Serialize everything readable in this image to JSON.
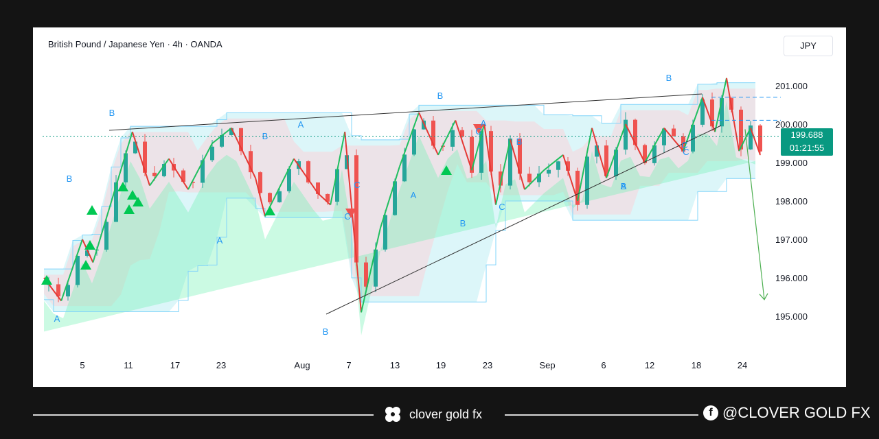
{
  "header": {
    "symbol_line": "British Pound / Japanese Yen · 4h · OANDA",
    "currency": "JPY"
  },
  "price_tag": {
    "price": "199.688",
    "countdown": "01:21:55"
  },
  "footer": {
    "brand": "clover gold fx",
    "social": "@CLOVER GOLD FX"
  },
  "colors": {
    "up": "#26a69a",
    "down": "#ef5350",
    "wave_label": "#2196f3",
    "price_tag": "#089981",
    "zigzag_up": "#1fbf5f",
    "zigzag_down": "#e53935",
    "projection": "#4caf50"
  },
  "chart_data": {
    "type": "candlestick",
    "title": "British Pound / Japanese Yen · 4h · OANDA",
    "currency": "JPY",
    "ylim": [
      194.0,
      202.5
    ],
    "y_ticks": [
      195.0,
      196.0,
      197.0,
      198.0,
      199.0,
      200.0,
      201.0
    ],
    "x_ticks": [
      "5",
      "11",
      "17",
      "23",
      "Aug",
      "7",
      "13",
      "19",
      "23",
      "Sep",
      "6",
      "12",
      "18",
      "24"
    ],
    "last_price": 199.688,
    "swing_points": [
      {
        "t": 0.0,
        "p": 196.0
      },
      {
        "t": 1.8,
        "p": 195.4
      },
      {
        "t": 4.0,
        "p": 197.0
      },
      {
        "t": 5.1,
        "p": 196.4
      },
      {
        "t": 9.2,
        "p": 199.8
      },
      {
        "t": 11.0,
        "p": 198.4
      },
      {
        "t": 13.0,
        "p": 199.1
      },
      {
        "t": 15.0,
        "p": 198.3
      },
      {
        "t": 17.5,
        "p": 199.5
      },
      {
        "t": 19.5,
        "p": 199.9
      },
      {
        "t": 22.0,
        "p": 198.6
      },
      {
        "t": 23.0,
        "p": 197.6
      },
      {
        "t": 26.0,
        "p": 199.1
      },
      {
        "t": 28.5,
        "p": 198.2
      },
      {
        "t": 29.8,
        "p": 197.9
      },
      {
        "t": 31.3,
        "p": 199.8
      },
      {
        "t": 33.0,
        "p": 195.1
      },
      {
        "t": 35.0,
        "p": 197.3
      },
      {
        "t": 37.0,
        "p": 198.9
      },
      {
        "t": 39.0,
        "p": 200.3
      },
      {
        "t": 41.0,
        "p": 199.2
      },
      {
        "t": 42.8,
        "p": 200.1
      },
      {
        "t": 44.5,
        "p": 198.8
      },
      {
        "t": 45.8,
        "p": 200.0
      },
      {
        "t": 47.0,
        "p": 197.9
      },
      {
        "t": 48.5,
        "p": 199.6
      },
      {
        "t": 50.0,
        "p": 198.3
      },
      {
        "t": 52.0,
        "p": 198.8
      },
      {
        "t": 54.0,
        "p": 199.2
      },
      {
        "t": 55.5,
        "p": 198.0
      },
      {
        "t": 57.0,
        "p": 199.9
      },
      {
        "t": 58.5,
        "p": 198.6
      },
      {
        "t": 60.5,
        "p": 200.0
      },
      {
        "t": 62.5,
        "p": 199.0
      },
      {
        "t": 64.5,
        "p": 199.9
      },
      {
        "t": 66.5,
        "p": 199.3
      },
      {
        "t": 68.5,
        "p": 200.7
      },
      {
        "t": 69.8,
        "p": 199.8
      },
      {
        "t": 71.0,
        "p": 201.2
      },
      {
        "t": 72.3,
        "p": 199.3
      },
      {
        "t": 73.5,
        "p": 199.9
      },
      {
        "t": 74.5,
        "p": 199.2
      }
    ],
    "trendlines": [
      {
        "from": [
          159,
          190
        ],
        "to": [
          1022,
          137
        ]
      },
      {
        "from": [
          475,
          458
        ],
        "to": [
          1050,
          183
        ]
      }
    ],
    "projection_arrow": {
      "from_price": 199.6,
      "to_price": 195.7
    },
    "wave_labels": [
      "B",
      "B",
      "A",
      "A",
      "B",
      "A",
      "B",
      "C",
      "C",
      "A",
      "B",
      "B",
      "A",
      "C",
      "B",
      "C",
      "B",
      "A",
      "B",
      "C",
      "C"
    ]
  }
}
